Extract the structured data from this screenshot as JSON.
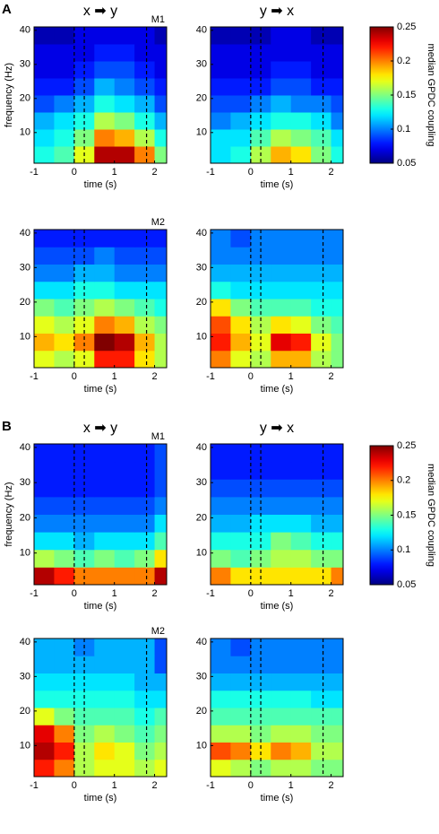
{
  "chart_data": [
    {
      "type": "heatmap",
      "section": "A",
      "title": "x ➡ y",
      "annotation": "M1",
      "xlabel": "time (s)",
      "ylabel": "frequency (Hz)",
      "xlim": [
        -1,
        2.3
      ],
      "ylim": [
        1,
        41
      ],
      "xticks": [
        -1,
        0,
        1,
        2
      ],
      "yticks": [
        10,
        20,
        30,
        40
      ],
      "vlines": [
        0,
        0.25,
        1.8
      ],
      "zlim": [
        0.05,
        0.25
      ],
      "xbins": [
        -1,
        -0.5,
        0,
        0.5,
        1,
        1.5,
        2,
        2.3
      ],
      "ybins": [
        1,
        6,
        11,
        16,
        21,
        26,
        31,
        36,
        41
      ],
      "z": [
        [
          0.13,
          0.14,
          0.17,
          0.24,
          0.24,
          0.2,
          0.15
        ],
        [
          0.12,
          0.13,
          0.15,
          0.2,
          0.19,
          0.16,
          0.13
        ],
        [
          0.11,
          0.12,
          0.13,
          0.16,
          0.15,
          0.13,
          0.11
        ],
        [
          0.09,
          0.1,
          0.11,
          0.13,
          0.12,
          0.11,
          0.09
        ],
        [
          0.08,
          0.08,
          0.09,
          0.11,
          0.1,
          0.09,
          0.08
        ],
        [
          0.07,
          0.07,
          0.08,
          0.09,
          0.09,
          0.08,
          0.07
        ],
        [
          0.07,
          0.07,
          0.07,
          0.08,
          0.08,
          0.07,
          0.07
        ],
        [
          0.06,
          0.06,
          0.07,
          0.07,
          0.07,
          0.07,
          0.06
        ]
      ]
    },
    {
      "type": "heatmap",
      "title": "y ➡ x",
      "xlabel": "time (s)",
      "xlim": [
        -1,
        2.3
      ],
      "ylim": [
        1,
        41
      ],
      "xticks": [
        -1,
        0,
        1,
        2
      ],
      "yticks": [
        10,
        20,
        30,
        40
      ],
      "vlines": [
        0,
        0.25,
        1.8
      ],
      "zlim": [
        0.05,
        0.25
      ],
      "xbins": [
        -1,
        -0.5,
        0,
        0.5,
        1,
        1.5,
        2,
        2.3
      ],
      "ybins": [
        1,
        6,
        11,
        16,
        21,
        26,
        31,
        36,
        41
      ],
      "z": [
        [
          0.12,
          0.13,
          0.16,
          0.19,
          0.18,
          0.15,
          0.13
        ],
        [
          0.12,
          0.12,
          0.14,
          0.16,
          0.15,
          0.14,
          0.12
        ],
        [
          0.1,
          0.11,
          0.12,
          0.13,
          0.13,
          0.12,
          0.1
        ],
        [
          0.09,
          0.09,
          0.1,
          0.11,
          0.1,
          0.1,
          0.09
        ],
        [
          0.08,
          0.08,
          0.08,
          0.09,
          0.09,
          0.08,
          0.08
        ],
        [
          0.07,
          0.07,
          0.07,
          0.08,
          0.08,
          0.07,
          0.07
        ],
        [
          0.07,
          0.07,
          0.07,
          0.07,
          0.07,
          0.07,
          0.07
        ],
        [
          0.06,
          0.06,
          0.06,
          0.07,
          0.07,
          0.06,
          0.06
        ]
      ]
    },
    {
      "type": "heatmap",
      "annotation": "M2",
      "xlabel": "time (s)",
      "xlim": [
        -1,
        2.3
      ],
      "ylim": [
        1,
        41
      ],
      "xticks": [
        -1,
        0,
        1,
        2
      ],
      "yticks": [
        10,
        20,
        30,
        40
      ],
      "vlines": [
        0,
        0.25,
        1.8
      ],
      "zlim": [
        0.05,
        0.25
      ],
      "xbins": [
        -1,
        -0.5,
        0,
        0.5,
        1,
        1.5,
        2,
        2.3
      ],
      "ybins": [
        1,
        6,
        11,
        16,
        21,
        26,
        31,
        36,
        41
      ],
      "z": [
        [
          0.17,
          0.16,
          0.17,
          0.22,
          0.22,
          0.18,
          0.16
        ],
        [
          0.19,
          0.18,
          0.2,
          0.25,
          0.24,
          0.19,
          0.16
        ],
        [
          0.17,
          0.16,
          0.17,
          0.2,
          0.19,
          0.16,
          0.15
        ],
        [
          0.15,
          0.14,
          0.15,
          0.16,
          0.15,
          0.14,
          0.13
        ],
        [
          0.12,
          0.12,
          0.13,
          0.13,
          0.12,
          0.12,
          0.12
        ],
        [
          0.1,
          0.1,
          0.11,
          0.11,
          0.1,
          0.1,
          0.1
        ],
        [
          0.09,
          0.09,
          0.09,
          0.1,
          0.09,
          0.09,
          0.09
        ],
        [
          0.08,
          0.08,
          0.08,
          0.08,
          0.08,
          0.08,
          0.08
        ]
      ]
    },
    {
      "type": "heatmap",
      "xlabel": "time (s)",
      "xlim": [
        -1,
        2.3
      ],
      "ylim": [
        1,
        41
      ],
      "xticks": [
        -1,
        0,
        1,
        2
      ],
      "yticks": [
        10,
        20,
        30,
        40
      ],
      "vlines": [
        0,
        0.25,
        1.8
      ],
      "zlim": [
        0.05,
        0.25
      ],
      "xbins": [
        -1,
        -0.5,
        0,
        0.5,
        1,
        1.5,
        2,
        2.3
      ],
      "ybins": [
        1,
        6,
        11,
        16,
        21,
        26,
        31,
        36,
        41
      ],
      "z": [
        [
          0.2,
          0.17,
          0.16,
          0.19,
          0.19,
          0.16,
          0.15
        ],
        [
          0.22,
          0.19,
          0.17,
          0.23,
          0.22,
          0.17,
          0.15
        ],
        [
          0.21,
          0.18,
          0.16,
          0.18,
          0.17,
          0.15,
          0.14
        ],
        [
          0.18,
          0.15,
          0.14,
          0.14,
          0.14,
          0.13,
          0.13
        ],
        [
          0.13,
          0.12,
          0.12,
          0.12,
          0.12,
          0.12,
          0.12
        ],
        [
          0.11,
          0.11,
          0.11,
          0.11,
          0.11,
          0.11,
          0.11
        ],
        [
          0.1,
          0.1,
          0.1,
          0.1,
          0.1,
          0.1,
          0.1
        ],
        [
          0.1,
          0.09,
          0.1,
          0.1,
          0.1,
          0.1,
          0.1
        ]
      ]
    },
    {
      "type": "heatmap",
      "section": "B",
      "title": "x ➡ y",
      "annotation": "M1",
      "xlabel": "time (s)",
      "ylabel": "frequency (Hz)",
      "xlim": [
        -1,
        2.3
      ],
      "ylim": [
        1,
        41
      ],
      "xticks": [
        -1,
        0,
        1,
        2
      ],
      "yticks": [
        10,
        20,
        30,
        40
      ],
      "vlines": [
        0,
        0.25,
        1.8
      ],
      "zlim": [
        0.05,
        0.25
      ],
      "xbins": [
        -1,
        -0.5,
        0,
        0.5,
        1,
        1.5,
        2,
        2.3
      ],
      "ybins": [
        1,
        6,
        11,
        16,
        21,
        26,
        31,
        36,
        41
      ],
      "z": [
        [
          0.24,
          0.22,
          0.2,
          0.2,
          0.2,
          0.2,
          0.24
        ],
        [
          0.16,
          0.15,
          0.14,
          0.15,
          0.14,
          0.15,
          0.18
        ],
        [
          0.12,
          0.12,
          0.11,
          0.12,
          0.12,
          0.12,
          0.14
        ],
        [
          0.1,
          0.1,
          0.1,
          0.1,
          0.1,
          0.1,
          0.12
        ],
        [
          0.09,
          0.09,
          0.09,
          0.09,
          0.09,
          0.09,
          0.1
        ],
        [
          0.08,
          0.08,
          0.08,
          0.08,
          0.08,
          0.08,
          0.09
        ],
        [
          0.08,
          0.08,
          0.08,
          0.08,
          0.08,
          0.08,
          0.09
        ],
        [
          0.08,
          0.08,
          0.08,
          0.08,
          0.08,
          0.08,
          0.09
        ]
      ]
    },
    {
      "type": "heatmap",
      "title": "y ➡ x",
      "xlabel": "time (s)",
      "xlim": [
        -1,
        2.3
      ],
      "ylim": [
        1,
        41
      ],
      "xticks": [
        -1,
        0,
        1,
        2
      ],
      "yticks": [
        10,
        20,
        30,
        40
      ],
      "vlines": [
        0,
        0.25,
        1.8
      ],
      "zlim": [
        0.05,
        0.25
      ],
      "xbins": [
        -1,
        -0.5,
        0,
        0.5,
        1,
        1.5,
        2,
        2.3
      ],
      "ybins": [
        1,
        6,
        11,
        16,
        21,
        26,
        31,
        36,
        41
      ],
      "z": [
        [
          0.2,
          0.18,
          0.18,
          0.18,
          0.18,
          0.18,
          0.2
        ],
        [
          0.15,
          0.14,
          0.15,
          0.16,
          0.16,
          0.15,
          0.15
        ],
        [
          0.13,
          0.13,
          0.13,
          0.15,
          0.14,
          0.13,
          0.13
        ],
        [
          0.11,
          0.11,
          0.12,
          0.12,
          0.12,
          0.11,
          0.11
        ],
        [
          0.1,
          0.1,
          0.1,
          0.1,
          0.1,
          0.1,
          0.1
        ],
        [
          0.09,
          0.09,
          0.09,
          0.09,
          0.09,
          0.09,
          0.09
        ],
        [
          0.08,
          0.08,
          0.08,
          0.08,
          0.08,
          0.08,
          0.08
        ],
        [
          0.08,
          0.08,
          0.08,
          0.08,
          0.08,
          0.08,
          0.08
        ]
      ]
    },
    {
      "type": "heatmap",
      "annotation": "M2",
      "xlabel": "time (s)",
      "xlim": [
        -1,
        2.3
      ],
      "ylim": [
        1,
        41
      ],
      "xticks": [
        -1,
        0,
        1,
        2
      ],
      "yticks": [
        10,
        20,
        30,
        40
      ],
      "vlines": [
        0,
        0.25,
        1.8
      ],
      "zlim": [
        0.05,
        0.25
      ],
      "xbins": [
        -1,
        -0.5,
        0,
        0.5,
        1,
        1.5,
        2,
        2.3
      ],
      "ybins": [
        1,
        6,
        11,
        16,
        21,
        26,
        31,
        36,
        41
      ],
      "z": [
        [
          0.22,
          0.2,
          0.16,
          0.17,
          0.17,
          0.16,
          0.17
        ],
        [
          0.24,
          0.22,
          0.16,
          0.18,
          0.17,
          0.15,
          0.16
        ],
        [
          0.23,
          0.2,
          0.15,
          0.16,
          0.15,
          0.14,
          0.15
        ],
        [
          0.17,
          0.15,
          0.14,
          0.14,
          0.14,
          0.13,
          0.14
        ],
        [
          0.13,
          0.13,
          0.13,
          0.13,
          0.13,
          0.12,
          0.12
        ],
        [
          0.12,
          0.12,
          0.12,
          0.12,
          0.12,
          0.11,
          0.11
        ],
        [
          0.11,
          0.11,
          0.11,
          0.11,
          0.11,
          0.11,
          0.09
        ],
        [
          0.11,
          0.11,
          0.1,
          0.11,
          0.11,
          0.11,
          0.09
        ]
      ]
    },
    {
      "type": "heatmap",
      "xlabel": "time (s)",
      "xlim": [
        -1,
        2.3
      ],
      "ylim": [
        1,
        41
      ],
      "xticks": [
        -1,
        0,
        1,
        2
      ],
      "yticks": [
        10,
        20,
        30,
        40
      ],
      "vlines": [
        0,
        0.25,
        1.8
      ],
      "zlim": [
        0.05,
        0.25
      ],
      "xbins": [
        -1,
        -0.5,
        0,
        0.5,
        1,
        1.5,
        2,
        2.3
      ],
      "ybins": [
        1,
        6,
        11,
        16,
        21,
        26,
        31,
        36,
        41
      ],
      "z": [
        [
          0.17,
          0.16,
          0.15,
          0.16,
          0.16,
          0.15,
          0.15
        ],
        [
          0.21,
          0.2,
          0.18,
          0.2,
          0.19,
          0.16,
          0.16
        ],
        [
          0.16,
          0.16,
          0.15,
          0.16,
          0.16,
          0.15,
          0.15
        ],
        [
          0.14,
          0.14,
          0.14,
          0.14,
          0.14,
          0.14,
          0.14
        ],
        [
          0.13,
          0.13,
          0.13,
          0.13,
          0.13,
          0.12,
          0.12
        ],
        [
          0.11,
          0.11,
          0.11,
          0.11,
          0.11,
          0.11,
          0.11
        ],
        [
          0.1,
          0.1,
          0.1,
          0.1,
          0.1,
          0.1,
          0.1
        ],
        [
          0.1,
          0.09,
          0.1,
          0.1,
          0.1,
          0.1,
          0.1
        ]
      ]
    },
    {
      "type": "colorbar",
      "label": "median  GPDC coupling",
      "zlim": [
        0.05,
        0.25
      ],
      "zticks": [
        0.05,
        0.1,
        0.15,
        0.2,
        0.25
      ]
    },
    {
      "type": "colorbar",
      "label": "median  GPDC coupling",
      "zlim": [
        0.05,
        0.25
      ],
      "zticks": [
        0.05,
        0.1,
        0.15,
        0.2,
        0.25
      ]
    }
  ]
}
